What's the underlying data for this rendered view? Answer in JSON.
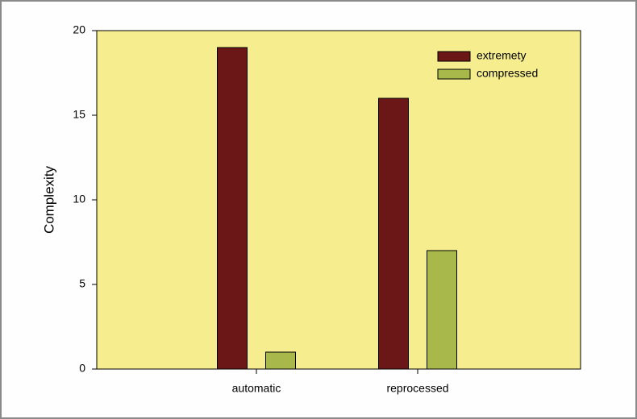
{
  "chart_data": {
    "type": "bar",
    "y_label": "Complexity",
    "categories": [
      "automatic",
      "reprocessed"
    ],
    "series": [
      {
        "name": "extremety",
        "color": "#6b1717",
        "values": [
          19,
          16
        ]
      },
      {
        "name": "compressed",
        "color": "#a9b84a",
        "values": [
          1,
          7
        ]
      }
    ],
    "ylim": [
      0,
      20
    ],
    "yticks": [
      0,
      5,
      10,
      15,
      20
    ],
    "legend": "top-right",
    "plot_background": "#f6ee8e"
  }
}
